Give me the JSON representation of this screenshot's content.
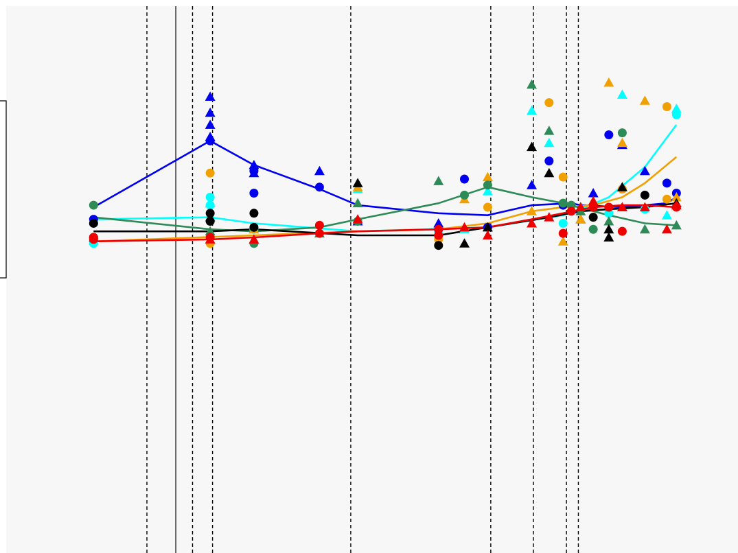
{
  "chart_data": {
    "type": "scatter",
    "title": "",
    "xlabel": "",
    "ylabel": "",
    "xlim": [
      0,
      1000
    ],
    "ylim": [
      -0.36,
      1.0
    ],
    "grid": false,
    "background": "#f7f7f7",
    "vlines_dashed": [
      7.5,
      23.5,
      31,
      35,
      81,
      189.5,
      245.5,
      300,
      322.5
    ],
    "vline_solid": 28,
    "x": [
      17,
      34.5,
      45,
      67,
      84.5,
      138,
      161.5,
      186,
      243,
      270,
      294,
      309,
      327,
      353,
      388,
      421,
      483,
      552,
      585
    ],
    "series": [
      {
        "color": "#0000ee",
        "points": [
          {
            "x": 17,
            "y": 0.415,
            "m": "o"
          },
          {
            "x": 17,
            "y": 0.47,
            "m": "o"
          },
          {
            "x": 34.5,
            "y": 0.775,
            "m": "^"
          },
          {
            "x": 34.5,
            "y": 0.735,
            "m": "^"
          },
          {
            "x": 34.5,
            "y": 0.705,
            "m": "^"
          },
          {
            "x": 34.5,
            "y": 0.675,
            "m": "^"
          },
          {
            "x": 34.5,
            "y": 0.665,
            "m": "o"
          },
          {
            "x": 45,
            "y": 0.59,
            "m": "o"
          },
          {
            "x": 45,
            "y": 0.535,
            "m": "o"
          },
          {
            "x": 45,
            "y": 0.605,
            "m": "^"
          },
          {
            "x": 45,
            "y": 0.585,
            "m": "^"
          },
          {
            "x": 67,
            "y": 0.59,
            "m": "^"
          },
          {
            "x": 67,
            "y": 0.55,
            "m": "o"
          },
          {
            "x": 84.5,
            "y": 0.465,
            "m": "^"
          },
          {
            "x": 138,
            "y": 0.46,
            "m": "^"
          },
          {
            "x": 161.5,
            "y": 0.57,
            "m": "o"
          },
          {
            "x": 186,
            "y": 0.45,
            "m": "o"
          },
          {
            "x": 243,
            "y": 0.555,
            "m": "^"
          },
          {
            "x": 270,
            "y": 0.615,
            "m": "o"
          },
          {
            "x": 294,
            "y": 0.505,
            "m": "o"
          },
          {
            "x": 309,
            "y": 0.495,
            "m": "^"
          },
          {
            "x": 327,
            "y": 0.47,
            "m": "^"
          },
          {
            "x": 353,
            "y": 0.535,
            "m": "^"
          },
          {
            "x": 388,
            "y": 0.68,
            "m": "o"
          },
          {
            "x": 421,
            "y": 0.655,
            "m": "^"
          },
          {
            "x": 483,
            "y": 0.59,
            "m": "^"
          },
          {
            "x": 552,
            "y": 0.56,
            "m": "o"
          },
          {
            "x": 585,
            "y": 0.535,
            "m": "o"
          }
        ],
        "trend": [
          {
            "x": 17,
            "y": 0.5
          },
          {
            "x": 34.5,
            "y": 0.665
          },
          {
            "x": 45,
            "y": 0.605
          },
          {
            "x": 67,
            "y": 0.545
          },
          {
            "x": 84.5,
            "y": 0.505
          },
          {
            "x": 138,
            "y": 0.485
          },
          {
            "x": 186,
            "y": 0.48
          },
          {
            "x": 243,
            "y": 0.505
          },
          {
            "x": 309,
            "y": 0.51
          },
          {
            "x": 327,
            "y": 0.505
          },
          {
            "x": 421,
            "y": 0.5
          },
          {
            "x": 552,
            "y": 0.51
          },
          {
            "x": 585,
            "y": 0.525
          }
        ]
      },
      {
        "color": "#00ffff",
        "points": [
          {
            "x": 17,
            "y": 0.41,
            "m": "o"
          },
          {
            "x": 17,
            "y": 0.46,
            "m": "o"
          },
          {
            "x": 34.5,
            "y": 0.51,
            "m": "^"
          },
          {
            "x": 34.5,
            "y": 0.525,
            "m": "o"
          },
          {
            "x": 34.5,
            "y": 0.505,
            "m": "o"
          },
          {
            "x": 45,
            "y": 0.445,
            "m": "o"
          },
          {
            "x": 84.5,
            "y": 0.545,
            "m": "^"
          },
          {
            "x": 138,
            "y": 0.44,
            "m": "o"
          },
          {
            "x": 161.5,
            "y": 0.445,
            "m": "^"
          },
          {
            "x": 186,
            "y": 0.54,
            "m": "^"
          },
          {
            "x": 243,
            "y": 0.74,
            "m": "^"
          },
          {
            "x": 270,
            "y": 0.66,
            "m": "^"
          },
          {
            "x": 294,
            "y": 0.46,
            "m": "o"
          },
          {
            "x": 327,
            "y": 0.5,
            "m": "^"
          },
          {
            "x": 388,
            "y": 0.485,
            "m": "o"
          },
          {
            "x": 421,
            "y": 0.78,
            "m": "^"
          },
          {
            "x": 483,
            "y": 0.495,
            "m": "o"
          },
          {
            "x": 552,
            "y": 0.48,
            "m": "^"
          },
          {
            "x": 585,
            "y": 0.73,
            "m": "o"
          },
          {
            "x": 585,
            "y": 0.745,
            "m": "^"
          }
        ],
        "trend": [
          {
            "x": 17,
            "y": 0.47
          },
          {
            "x": 34.5,
            "y": 0.475
          },
          {
            "x": 45,
            "y": 0.46
          },
          {
            "x": 84.5,
            "y": 0.44
          },
          {
            "x": 186,
            "y": 0.45
          },
          {
            "x": 294,
            "y": 0.48
          },
          {
            "x": 327,
            "y": 0.495
          },
          {
            "x": 388,
            "y": 0.525
          },
          {
            "x": 483,
            "y": 0.6
          },
          {
            "x": 585,
            "y": 0.705
          }
        ]
      },
      {
        "color": "#f0a000",
        "points": [
          {
            "x": 17,
            "y": 0.42,
            "m": "o"
          },
          {
            "x": 34.5,
            "y": 0.585,
            "m": "o"
          },
          {
            "x": 34.5,
            "y": 0.41,
            "m": "o"
          },
          {
            "x": 45,
            "y": 0.445,
            "m": "^"
          },
          {
            "x": 84.5,
            "y": 0.55,
            "m": "^"
          },
          {
            "x": 138,
            "y": 0.42,
            "m": "o"
          },
          {
            "x": 161.5,
            "y": 0.52,
            "m": "^"
          },
          {
            "x": 186,
            "y": 0.575,
            "m": "^"
          },
          {
            "x": 186,
            "y": 0.5,
            "m": "o"
          },
          {
            "x": 243,
            "y": 0.49,
            "m": "^"
          },
          {
            "x": 270,
            "y": 0.76,
            "m": "o"
          },
          {
            "x": 294,
            "y": 0.575,
            "m": "o"
          },
          {
            "x": 294,
            "y": 0.415,
            "m": "^"
          },
          {
            "x": 327,
            "y": 0.47,
            "m": "^"
          },
          {
            "x": 353,
            "y": 0.515,
            "m": "^"
          },
          {
            "x": 388,
            "y": 0.81,
            "m": "^"
          },
          {
            "x": 421,
            "y": 0.66,
            "m": "^"
          },
          {
            "x": 421,
            "y": 0.545,
            "m": "o"
          },
          {
            "x": 483,
            "y": 0.765,
            "m": "^"
          },
          {
            "x": 552,
            "y": 0.75,
            "m": "o"
          },
          {
            "x": 552,
            "y": 0.52,
            "m": "o"
          },
          {
            "x": 585,
            "y": 0.525,
            "m": "^"
          }
        ],
        "trend": [
          {
            "x": 17,
            "y": 0.415
          },
          {
            "x": 45,
            "y": 0.43
          },
          {
            "x": 84.5,
            "y": 0.44
          },
          {
            "x": 138,
            "y": 0.445
          },
          {
            "x": 186,
            "y": 0.46
          },
          {
            "x": 243,
            "y": 0.49
          },
          {
            "x": 294,
            "y": 0.5
          },
          {
            "x": 353,
            "y": 0.505
          },
          {
            "x": 421,
            "y": 0.525
          },
          {
            "x": 483,
            "y": 0.56
          },
          {
            "x": 585,
            "y": 0.625
          }
        ]
      },
      {
        "color": "#2e8b57",
        "points": [
          {
            "x": 17,
            "y": 0.505,
            "m": "o"
          },
          {
            "x": 34.5,
            "y": 0.475,
            "m": "^"
          },
          {
            "x": 34.5,
            "y": 0.44,
            "m": "^"
          },
          {
            "x": 45,
            "y": 0.41,
            "m": "o"
          },
          {
            "x": 67,
            "y": 0.435,
            "m": "^"
          },
          {
            "x": 84.5,
            "y": 0.51,
            "m": "^"
          },
          {
            "x": 84.5,
            "y": 0.465,
            "m": "o"
          },
          {
            "x": 138,
            "y": 0.565,
            "m": "^"
          },
          {
            "x": 161.5,
            "y": 0.53,
            "m": "o"
          },
          {
            "x": 186,
            "y": 0.555,
            "m": "o"
          },
          {
            "x": 243,
            "y": 0.805,
            "m": "^"
          },
          {
            "x": 270,
            "y": 0.69,
            "m": "^"
          },
          {
            "x": 294,
            "y": 0.51,
            "m": "o"
          },
          {
            "x": 309,
            "y": 0.505,
            "m": "o"
          },
          {
            "x": 327,
            "y": 0.49,
            "m": "^"
          },
          {
            "x": 353,
            "y": 0.445,
            "m": "o"
          },
          {
            "x": 388,
            "y": 0.465,
            "m": "^"
          },
          {
            "x": 421,
            "y": 0.685,
            "m": "o"
          },
          {
            "x": 483,
            "y": 0.445,
            "m": "^"
          },
          {
            "x": 585,
            "y": 0.455,
            "m": "^"
          }
        ],
        "trend": [
          {
            "x": 17,
            "y": 0.475
          },
          {
            "x": 34.5,
            "y": 0.445
          },
          {
            "x": 45,
            "y": 0.44
          },
          {
            "x": 67,
            "y": 0.45
          },
          {
            "x": 84.5,
            "y": 0.47
          },
          {
            "x": 138,
            "y": 0.51
          },
          {
            "x": 186,
            "y": 0.55
          },
          {
            "x": 243,
            "y": 0.525
          },
          {
            "x": 294,
            "y": 0.51
          },
          {
            "x": 388,
            "y": 0.48
          },
          {
            "x": 483,
            "y": 0.46
          },
          {
            "x": 585,
            "y": 0.455
          }
        ]
      },
      {
        "color": "#000000",
        "points": [
          {
            "x": 17,
            "y": 0.425,
            "m": "o"
          },
          {
            "x": 17,
            "y": 0.46,
            "m": "o"
          },
          {
            "x": 34.5,
            "y": 0.485,
            "m": "o"
          },
          {
            "x": 34.5,
            "y": 0.465,
            "m": "o"
          },
          {
            "x": 45,
            "y": 0.485,
            "m": "o"
          },
          {
            "x": 45,
            "y": 0.45,
            "m": "o"
          },
          {
            "x": 84.5,
            "y": 0.56,
            "m": "^"
          },
          {
            "x": 138,
            "y": 0.405,
            "m": "o"
          },
          {
            "x": 161.5,
            "y": 0.41,
            "m": "^"
          },
          {
            "x": 186,
            "y": 0.45,
            "m": "^"
          },
          {
            "x": 243,
            "y": 0.65,
            "m": "^"
          },
          {
            "x": 270,
            "y": 0.585,
            "m": "^"
          },
          {
            "x": 327,
            "y": 0.5,
            "m": "^"
          },
          {
            "x": 353,
            "y": 0.475,
            "m": "o"
          },
          {
            "x": 388,
            "y": 0.445,
            "m": "^"
          },
          {
            "x": 388,
            "y": 0.425,
            "m": "^"
          },
          {
            "x": 421,
            "y": 0.55,
            "m": "^"
          },
          {
            "x": 483,
            "y": 0.53,
            "m": "o"
          },
          {
            "x": 585,
            "y": 0.51,
            "m": "^"
          }
        ],
        "trend": [
          {
            "x": 17,
            "y": 0.44
          },
          {
            "x": 34.5,
            "y": 0.44
          },
          {
            "x": 45,
            "y": 0.445
          },
          {
            "x": 84.5,
            "y": 0.43
          },
          {
            "x": 138,
            "y": 0.43
          },
          {
            "x": 186,
            "y": 0.45
          },
          {
            "x": 270,
            "y": 0.475
          },
          {
            "x": 327,
            "y": 0.49
          },
          {
            "x": 388,
            "y": 0.495
          },
          {
            "x": 483,
            "y": 0.5
          },
          {
            "x": 585,
            "y": 0.51
          }
        ]
      },
      {
        "color": "#ee0000",
        "points": [
          {
            "x": 17,
            "y": 0.425,
            "m": "o"
          },
          {
            "x": 17,
            "y": 0.42,
            "m": "o"
          },
          {
            "x": 34.5,
            "y": 0.425,
            "m": "o"
          },
          {
            "x": 34.5,
            "y": 0.42,
            "m": "^"
          },
          {
            "x": 45,
            "y": 0.42,
            "m": "^"
          },
          {
            "x": 67,
            "y": 0.455,
            "m": "o"
          },
          {
            "x": 67,
            "y": 0.435,
            "m": "o"
          },
          {
            "x": 84.5,
            "y": 0.47,
            "m": "^"
          },
          {
            "x": 138,
            "y": 0.445,
            "m": "o"
          },
          {
            "x": 138,
            "y": 0.43,
            "m": "o"
          },
          {
            "x": 161.5,
            "y": 0.45,
            "m": "^"
          },
          {
            "x": 186,
            "y": 0.43,
            "m": "^"
          },
          {
            "x": 243,
            "y": 0.46,
            "m": "^"
          },
          {
            "x": 270,
            "y": 0.475,
            "m": "^"
          },
          {
            "x": 294,
            "y": 0.435,
            "m": "o"
          },
          {
            "x": 309,
            "y": 0.49,
            "m": "o"
          },
          {
            "x": 327,
            "y": 0.5,
            "m": "^"
          },
          {
            "x": 353,
            "y": 0.515,
            "m": "^"
          },
          {
            "x": 353,
            "y": 0.5,
            "m": "o"
          },
          {
            "x": 388,
            "y": 0.5,
            "m": "o"
          },
          {
            "x": 421,
            "y": 0.5,
            "m": "^"
          },
          {
            "x": 421,
            "y": 0.44,
            "m": "o"
          },
          {
            "x": 483,
            "y": 0.5,
            "m": "^"
          },
          {
            "x": 552,
            "y": 0.445,
            "m": "^"
          },
          {
            "x": 585,
            "y": 0.5,
            "m": "o"
          },
          {
            "x": 585,
            "y": 0.505,
            "m": "^"
          }
        ],
        "trend": [
          {
            "x": 17,
            "y": 0.415
          },
          {
            "x": 34.5,
            "y": 0.42
          },
          {
            "x": 45,
            "y": 0.425
          },
          {
            "x": 67,
            "y": 0.435
          },
          {
            "x": 84.5,
            "y": 0.44
          },
          {
            "x": 138,
            "y": 0.445
          },
          {
            "x": 186,
            "y": 0.45
          },
          {
            "x": 243,
            "y": 0.47
          },
          {
            "x": 294,
            "y": 0.485
          },
          {
            "x": 353,
            "y": 0.5
          },
          {
            "x": 421,
            "y": 0.505
          },
          {
            "x": 483,
            "y": 0.505
          },
          {
            "x": 585,
            "y": 0.5
          }
        ]
      }
    ]
  }
}
